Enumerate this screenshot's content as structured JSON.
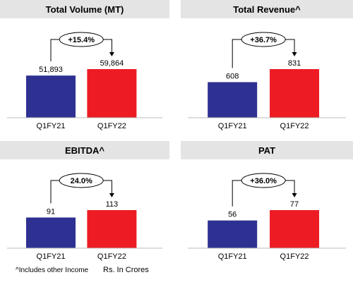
{
  "chart_data": [
    {
      "type": "bar",
      "title": "Total Volume (MT)",
      "categories": [
        "Q1FY21",
        "Q1FY22"
      ],
      "values": [
        51893,
        59864
      ],
      "value_labels": [
        "51,893",
        "59,864"
      ],
      "growth_label": "+15.4%",
      "colors": [
        "#2e3192",
        "#ed1c24"
      ]
    },
    {
      "type": "bar",
      "title": "Total Revenue^",
      "categories": [
        "Q1FY21",
        "Q1FY22"
      ],
      "values": [
        608,
        831
      ],
      "value_labels": [
        "608",
        "831"
      ],
      "growth_label": "+36.7%",
      "colors": [
        "#2e3192",
        "#ed1c24"
      ]
    },
    {
      "type": "bar",
      "title": "EBITDA^",
      "categories": [
        "Q1FY21",
        "Q1FY22"
      ],
      "values": [
        91,
        113
      ],
      "value_labels": [
        "91",
        "113"
      ],
      "growth_label": "24.0%",
      "colors": [
        "#2e3192",
        "#ed1c24"
      ]
    },
    {
      "type": "bar",
      "title": "PAT",
      "categories": [
        "Q1FY21",
        "Q1FY22"
      ],
      "values": [
        56,
        77
      ],
      "value_labels": [
        "56",
        "77"
      ],
      "growth_label": "+36.0%",
      "colors": [
        "#2e3192",
        "#ed1c24"
      ]
    }
  ],
  "footnote": "^Includes other Income",
  "units_note": "Rs. In Crores"
}
